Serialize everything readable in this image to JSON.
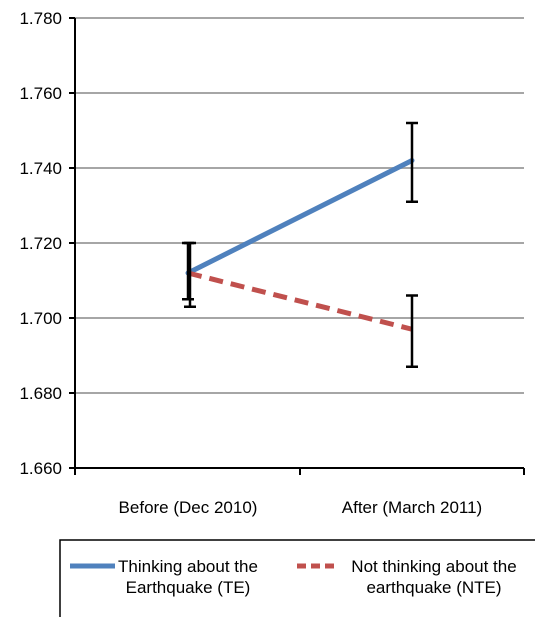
{
  "chart_data": {
    "type": "line",
    "categories": [
      "Before (Dec 2010)",
      "After (March 2011)"
    ],
    "ylim": [
      1.66,
      1.78
    ],
    "yticks": [
      "1.660",
      "1.680",
      "1.700",
      "1.720",
      "1.740",
      "1.760",
      "1.780"
    ],
    "ytick_values": [
      1.66,
      1.68,
      1.7,
      1.72,
      1.74,
      1.76,
      1.78
    ],
    "grid": true,
    "legend_placement": "bottom",
    "series": [
      {
        "name": "Thinking about the Earthquake (TE)",
        "legend_lines": [
          "Thinking about the",
          "Earthquake (TE)"
        ],
        "values": [
          1.712,
          1.742
        ],
        "error_low": [
          1.705,
          1.731
        ],
        "error_high": [
          1.72,
          1.752
        ],
        "color": "#4F81BD",
        "dash": "solid"
      },
      {
        "name": "Not thinking about the earthquake (NTE)",
        "legend_lines": [
          "Not thinking about the",
          "earthquake (NTE)"
        ],
        "values": [
          1.712,
          1.697
        ],
        "error_low": [
          1.703,
          1.687
        ],
        "error_high": [
          1.72,
          1.706
        ],
        "color": "#C0504D",
        "dash": "dashed"
      }
    ]
  }
}
